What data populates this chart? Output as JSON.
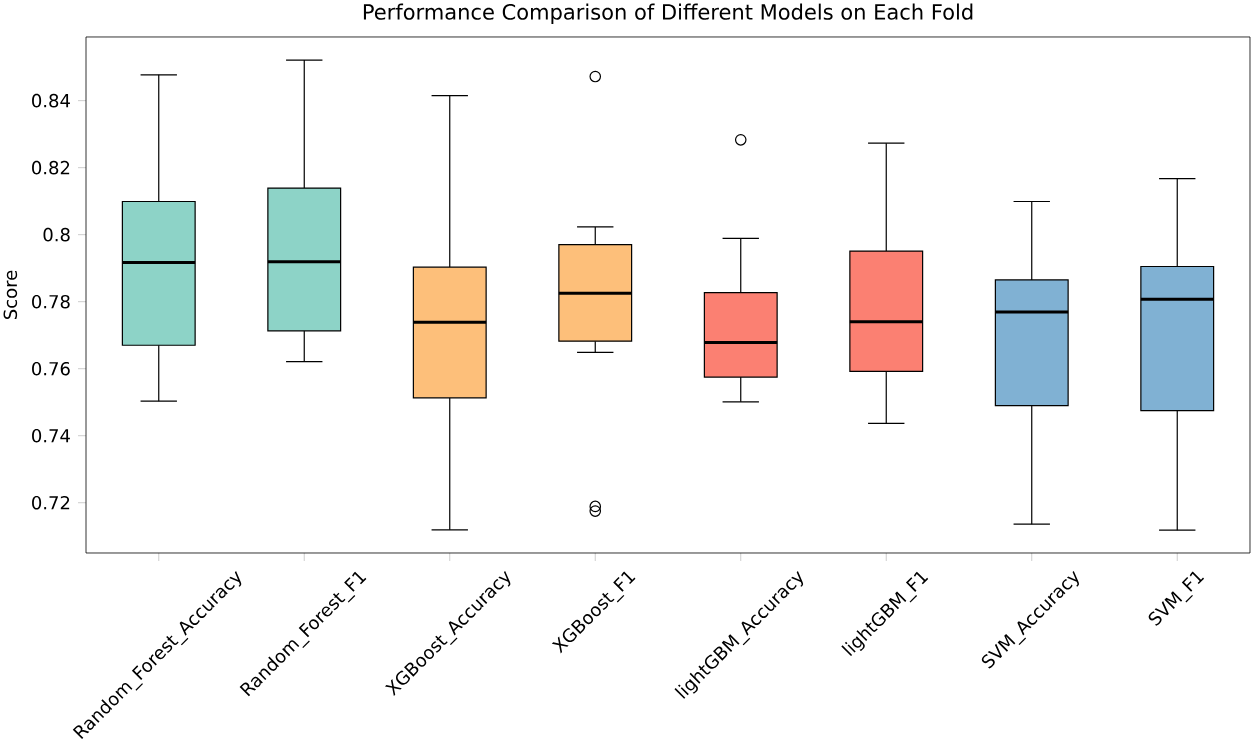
{
  "chart_data": {
    "type": "box",
    "title": "Performance Comparison of Different Models on Each Fold",
    "ylabel": "Score",
    "categories": [
      "Random_Forest_Accuracy",
      "Random_Forest_F1",
      "XGBoost_Accuracy",
      "XGBoost_F1",
      "lightGBM_Accuracy",
      "lightGBM_F1",
      "SVM_Accuracy",
      "SVM_F1"
    ],
    "colors": [
      "#8dd3c7",
      "#8dd3c7",
      "#fdbf7a",
      "#fdbf7a",
      "#fb8072",
      "#fb8072",
      "#80b1d3",
      "#80b1d3"
    ],
    "boxes": [
      {
        "low": 0.7503,
        "q1": 0.767,
        "median": 0.7917,
        "q3": 0.8099,
        "high": 0.8477
      },
      {
        "low": 0.7621,
        "q1": 0.7713,
        "median": 0.7919,
        "q3": 0.8139,
        "high": 0.8521
      },
      {
        "low": 0.7119,
        "q1": 0.7513,
        "median": 0.7739,
        "q3": 0.7903,
        "high": 0.8415
      },
      {
        "low": 0.7649,
        "q1": 0.7682,
        "median": 0.7825,
        "q3": 0.797,
        "high": 0.8023,
        "outliers": [
          0.8472,
          0.7189,
          0.7175
        ]
      },
      {
        "low": 0.7501,
        "q1": 0.7575,
        "median": 0.7678,
        "q3": 0.7827,
        "high": 0.7989,
        "outliers": [
          0.8283
        ]
      },
      {
        "low": 0.7437,
        "q1": 0.7592,
        "median": 0.774,
        "q3": 0.7951,
        "high": 0.8273
      },
      {
        "low": 0.7136,
        "q1": 0.749,
        "median": 0.7769,
        "q3": 0.7865,
        "high": 0.8099
      },
      {
        "low": 0.7118,
        "q1": 0.7475,
        "median": 0.7807,
        "q3": 0.7905,
        "high": 0.8167
      }
    ],
    "ylim": [
      0.705,
      0.859
    ],
    "yticks": [
      0.72,
      0.74,
      0.76,
      0.78,
      0.8,
      0.82,
      0.84
    ],
    "grid": false
  }
}
